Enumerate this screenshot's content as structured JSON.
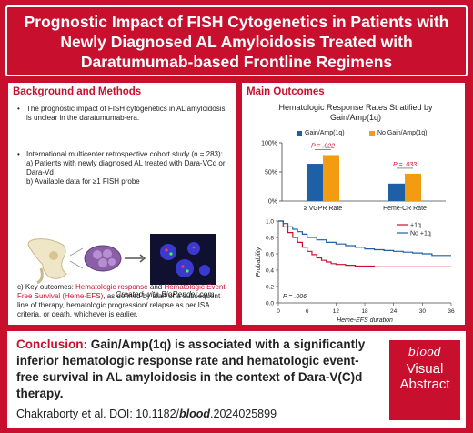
{
  "header": {
    "title_line1": "Prognostic Impact of FISH Cytogenetics in Patients with",
    "title_line2": "Newly Diagnosed AL Amyloidosis Treated with",
    "title_line3": "Daratumumab-based Frontline Regimens"
  },
  "left": {
    "title": "Background and Methods",
    "bullet1": "The prognostic impact of FISH cytogenetics in AL amyloidosis is unclear in the daratumumab-era.",
    "bullet2_intro": "International multicenter retrospective cohort study (n = 283):",
    "bullet2_a": "a) Patients with newly diagnosed AL treated with Dara-VCd or Dara-Vd",
    "bullet2_b": "b) Available data for ≥1 FISH probe",
    "created_with": "Created with BioRender.com",
    "bullet3_pre": "c) Key outcomes: ",
    "bullet3_link1": "Hematologic response",
    "bullet3_and": " and ",
    "bullet3_link2": "Hematologic Event-Free Survival (Heme-EFS)",
    "bullet3_post": ", as defined by start of a subsequent line of therapy, hematologic progression/ relapse as per ISA criteria, or death, whichever is earlier."
  },
  "right": {
    "title": "Main Outcomes"
  },
  "chart_data": [
    {
      "type": "bar",
      "title": "Hematologic Response Rates Stratified by Gain/Amp(1q)",
      "categories": [
        "≥ VGPR Rate",
        "Heme-CR Rate"
      ],
      "series": [
        {
          "name": "Gain/Amp(1q)",
          "values": [
            64,
            30
          ],
          "color": "#1f5fa6"
        },
        {
          "name": "No Gain/Amp(1q)",
          "values": [
            79,
            47
          ],
          "color": "#f39c12"
        }
      ],
      "pvalues": [
        "P = .022",
        "P = .033"
      ],
      "yticks": [
        "100%",
        "50%",
        "0%"
      ],
      "ylim": [
        0,
        100
      ]
    },
    {
      "type": "line",
      "xlabel": "Heme-EFS duration",
      "ylabel": "Probability",
      "xticks": [
        0,
        6,
        12,
        18,
        24,
        30,
        36
      ],
      "yticks": [
        "1.0",
        "0.8",
        "0.6",
        "0.4",
        "0.2",
        "0.0"
      ],
      "xlim": [
        0,
        36
      ],
      "ylim": [
        0,
        1
      ],
      "pvalue": "P = .006",
      "series": [
        {
          "name": "+1q",
          "color": "#c8102e",
          "x": [
            0,
            1,
            2,
            3,
            4,
            5,
            6,
            7,
            8,
            9,
            10,
            11,
            12,
            14,
            16,
            18,
            20,
            24,
            28,
            32,
            36
          ],
          "y": [
            1.0,
            0.93,
            0.86,
            0.8,
            0.74,
            0.68,
            0.63,
            0.59,
            0.55,
            0.52,
            0.5,
            0.48,
            0.47,
            0.46,
            0.45,
            0.45,
            0.44,
            0.44,
            0.44,
            0.44,
            0.44
          ]
        },
        {
          "name": "No +1q",
          "color": "#1f5fa6",
          "x": [
            0,
            1,
            2,
            3,
            4,
            5,
            6,
            8,
            10,
            12,
            14,
            16,
            18,
            20,
            22,
            24,
            26,
            28,
            30,
            32,
            36
          ],
          "y": [
            1.0,
            0.97,
            0.93,
            0.9,
            0.87,
            0.84,
            0.8,
            0.77,
            0.74,
            0.72,
            0.7,
            0.68,
            0.66,
            0.65,
            0.64,
            0.63,
            0.62,
            0.61,
            0.6,
            0.58,
            0.58
          ]
        }
      ]
    }
  ],
  "conclusion": {
    "label": "Conclusion:",
    "text": " Gain/Amp(1q) is associated with a significantly inferior hematologic response rate and hematologic event-free survival in AL amyloidosis in the context of Dara-V(C)d therapy."
  },
  "citation": {
    "pre": "Chakraborty et al. DOI: 10.1182/",
    "journal": "blood",
    "post": ".2024025899"
  },
  "badge": {
    "brand": "blood",
    "line1": "Visual",
    "line2": "Abstract"
  },
  "colors": {
    "accent": "#c8102e",
    "blue": "#1f5fa6",
    "orange": "#f39c12"
  }
}
